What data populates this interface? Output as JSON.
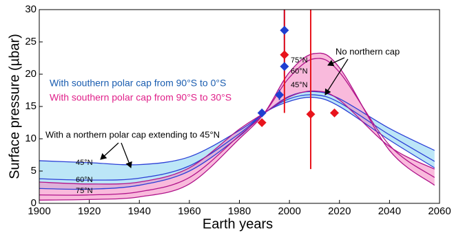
{
  "chart_data": {
    "type": "line",
    "xlabel": "Earth years",
    "ylabel": "Surface pressure (µbar)",
    "xlim": [
      1900,
      2060
    ],
    "xticks": [
      1900,
      1920,
      1940,
      1960,
      1980,
      2000,
      2020,
      2040,
      2060
    ],
    "ylim": [
      0,
      30
    ],
    "yticks": [
      0,
      5,
      10,
      15,
      20,
      25,
      30
    ],
    "x": [
      1900,
      1920,
      1940,
      1960,
      1980,
      1990,
      2000,
      2010,
      2020,
      2040,
      2058
    ],
    "bands": [
      {
        "color": "#2b3fd6",
        "fill": "#8fd6f2",
        "curves": [
          {
            "values": [
              6.6,
              6.3,
              6.0,
              7.2,
              11.3,
              14,
              16.6,
              17.3,
              16.2,
              11.6,
              8.2
            ]
          },
          {
            "values": [
              3.8,
              3.6,
              3.9,
              5.8,
              10.8,
              14,
              16.2,
              16.8,
              15.6,
              10.6,
              6.5
            ]
          },
          {
            "values": [
              2.3,
              2.2,
              2.8,
              5.0,
              10.4,
              14,
              15.8,
              16.4,
              15.0,
              9.8,
              5.5
            ]
          }
        ]
      },
      {
        "color": "#b0138a",
        "fill": "#f58cc4",
        "curves": [
          {
            "values": [
              3.3,
              3.0,
              3.3,
              5.5,
              11.5,
              14,
              16.5,
              17.4,
              16.0,
              8.8,
              5.3
            ]
          },
          {
            "values": [
              1.3,
              1.3,
              1.8,
              4.0,
              10.5,
              14,
              19.5,
              22.4,
              20.3,
              9.0,
              4.0
            ]
          },
          {
            "values": [
              0.5,
              0.6,
              1.0,
              3.0,
              10.0,
              14,
              20.3,
              23.2,
              21.0,
              8.2,
              2.8
            ]
          }
        ]
      }
    ],
    "points": [
      {
        "color": "#1f3fd0",
        "x": [
          1989,
          1996,
          1998,
          1998
        ],
        "values": [
          14,
          16.8,
          21.2,
          26.8
        ],
        "err_minus": [
          0.6,
          0.8,
          1.5,
          1.5
        ],
        "err_plus": [
          0.6,
          0.8,
          10,
          10
        ]
      },
      {
        "color": "#e8141c",
        "x": [
          1989,
          1998,
          2008.5,
          2018
        ],
        "values": [
          12.5,
          23,
          13.8,
          14
        ],
        "err_minus": [
          0.3,
          9,
          8.5,
          0.3
        ],
        "err_plus": [
          0.3,
          9,
          17,
          0.3
        ]
      }
    ],
    "annotations": [
      {
        "text": "With southern polar cap from 90°S to 0°S",
        "color": "#1a5db0"
      },
      {
        "text": "With southern polar cap from 90°S to 30°S",
        "color": "#e0218a"
      },
      {
        "text": "With a northern polar cap extending to 45°N",
        "color": "#000000"
      },
      {
        "text": "No northern cap",
        "color": "#000000"
      },
      {
        "text": "45°N",
        "color": "#000000"
      },
      {
        "text": "60°N",
        "color": "#000000"
      },
      {
        "text": "75°N",
        "color": "#000000"
      },
      {
        "text": "75°N",
        "color": "#000000"
      },
      {
        "text": "60°N",
        "color": "#000000"
      },
      {
        "text": "45°N",
        "color": "#000000"
      }
    ]
  }
}
